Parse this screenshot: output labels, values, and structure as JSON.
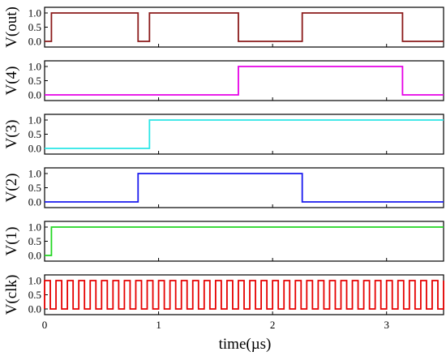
{
  "chart_data": {
    "type": "line",
    "title": "",
    "xlabel": "time(µs)",
    "xlim": [
      0,
      3.5
    ],
    "x_ticks": [
      "0",
      "1",
      "2",
      "3"
    ],
    "y_ticks": [
      "1.0",
      "0.5",
      "0.0"
    ],
    "ylim": [
      -0.2,
      1.2
    ],
    "grid": false,
    "panels": [
      {
        "name": "V(out)",
        "color": "#8b1a1a",
        "x": [
          0,
          0.06,
          0.06,
          0.82,
          0.82,
          0.92,
          0.92,
          1.7,
          1.7,
          2.26,
          2.26,
          3.14,
          3.14,
          3.5
        ],
        "y": [
          0,
          0,
          1,
          1,
          0,
          0,
          1,
          1,
          0,
          0,
          1,
          1,
          0,
          0
        ]
      },
      {
        "name": "V(4)",
        "color": "#e600e6",
        "x": [
          0,
          1.7,
          1.7,
          3.14,
          3.14,
          3.5
        ],
        "y": [
          0,
          0,
          1,
          1,
          0,
          0
        ]
      },
      {
        "name": "V(3)",
        "color": "#2ae6e6",
        "x": [
          0,
          0.92,
          0.92,
          3.5
        ],
        "y": [
          0,
          0,
          1,
          1
        ]
      },
      {
        "name": "V(2)",
        "color": "#1a1aee",
        "x": [
          0,
          0.82,
          0.82,
          2.26,
          2.26,
          3.5
        ],
        "y": [
          0,
          0,
          1,
          1,
          0,
          0
        ]
      },
      {
        "name": "V(1)",
        "color": "#22d622",
        "x": [
          0,
          0.06,
          0.06,
          3.5
        ],
        "y": [
          0,
          0,
          1,
          1
        ]
      },
      {
        "name": "V(clk)",
        "color": "#e60000",
        "clock": {
          "period_us": 0.1,
          "high_first": true,
          "start_us": 0.0
        }
      }
    ]
  }
}
